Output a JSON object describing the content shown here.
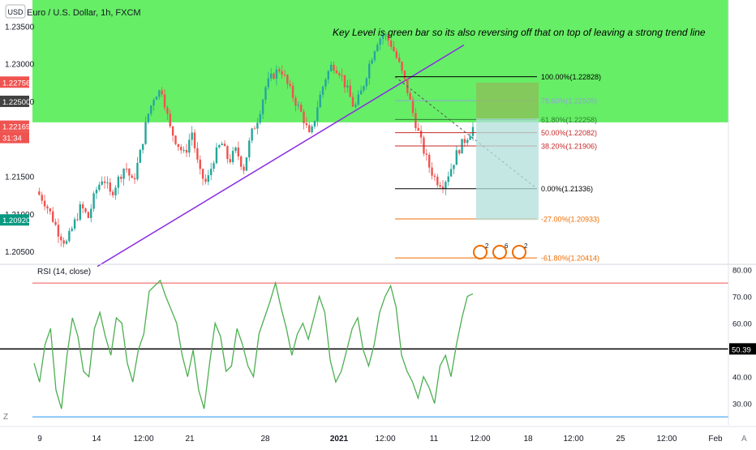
{
  "symbol_title": "Euro / U.S. Dollar, 1h, FXCM",
  "currency_badge": "USD",
  "annotation": "Key Level is green bar so its also reversing off that on top of leaving a strong trend line",
  "price_tags": [
    {
      "text": "1.22756",
      "color": "#ef5350"
    },
    {
      "text": "1.22500",
      "color": "#424242"
    },
    {
      "text": "1.22169",
      "color": "#ef5350"
    },
    {
      "text": "31:34",
      "color": "#ef5350"
    },
    {
      "text": "1.20920",
      "color": "#089981"
    }
  ],
  "rsi_label": "RSI (14, close)",
  "rsi_value_tag": "50.39",
  "bottom_left_glyph": "Z",
  "bottom_right_glyph": "A",
  "event_badges": [
    "2",
    "6",
    "2"
  ],
  "colors": {
    "key_level_zone": "#66ee66",
    "trend_line": "#8a2be2",
    "rsi_line": "#4caf50",
    "bull_candle": "#26a69a",
    "bear_candle": "#ef5350",
    "target_box": "#b2dfdb",
    "stop_box": "#8fbc5a"
  },
  "chart_data": [
    {
      "type": "candlestick",
      "title": "Euro / U.S. Dollar, 1h, FXCM",
      "y_ticks": [
        "1.23500",
        "1.23000",
        "1.22500",
        "1.21500",
        "1.21000",
        "1.20500"
      ],
      "ylim": [
        1.2035,
        1.2385
      ],
      "x_ticks": [
        "9",
        "14",
        "12:00",
        "21",
        "28",
        "2021",
        "12:00",
        "11",
        "12:00",
        "18",
        "12:00",
        "25",
        "12:00",
        "Feb"
      ],
      "price_path": [
        1.213,
        1.2118,
        1.2098,
        1.2075,
        1.206,
        1.2085,
        1.211,
        1.2095,
        1.213,
        1.215,
        1.2125,
        1.2145,
        1.2165,
        1.214,
        1.218,
        1.223,
        1.226,
        1.2265,
        1.2215,
        1.2195,
        1.2178,
        1.221,
        1.2155,
        1.214,
        1.2175,
        1.2195,
        1.217,
        1.2185,
        1.216,
        1.2205,
        1.223,
        1.227,
        1.2285,
        1.2295,
        1.227,
        1.225,
        1.223,
        1.22,
        1.2245,
        1.228,
        1.23,
        1.229,
        1.2265,
        1.224,
        1.2265,
        1.23,
        1.233,
        1.234,
        1.2325,
        1.23,
        1.227,
        1.223,
        1.2195,
        1.2165,
        1.2145,
        1.214,
        1.216,
        1.2185,
        1.22,
        1.2215
      ],
      "key_level_zone": {
        "low": 1.2222,
        "high": 1.2385
      },
      "trend_line": {
        "from": 1.203,
        "to": 1.2325
      },
      "fibonacci": [
        {
          "label": "100.00%(1.22828)",
          "level": 1.22828,
          "color": "#000000"
        },
        {
          "label": "78.60%(1.22509)",
          "level": 1.22509,
          "color": "#90a4d6"
        },
        {
          "label": "61.80%(1.22258)",
          "level": 1.22258,
          "color": "#2e7d32"
        },
        {
          "label": "50.00%(1.22082)",
          "level": 1.22082,
          "color": "#c62828"
        },
        {
          "label": "38.20%(1.21906)",
          "level": 1.21906,
          "color": "#c62828"
        },
        {
          "label": "0.00%(1.21336)",
          "level": 1.21336,
          "color": "#000000"
        },
        {
          "label": "-27.00%(1.20933)",
          "level": 1.20933,
          "color": "#ef6c00"
        },
        {
          "label": "-61.80%(1.20414)",
          "level": 1.20414,
          "color": "#ef6c00"
        }
      ],
      "position": {
        "entry": 1.2227,
        "target": 1.2092,
        "stop": 1.2275
      }
    },
    {
      "type": "line",
      "title": "RSI (14, close)",
      "y_ticks": [
        "80.00",
        "70.00",
        "60.00",
        "40.00",
        "30.00"
      ],
      "ylim": [
        22,
        82
      ],
      "levels": {
        "upper": 75,
        "middle": 50.39,
        "lower": 25
      },
      "values": [
        45,
        38,
        52,
        58,
        35,
        28,
        48,
        62,
        55,
        42,
        40,
        58,
        64,
        55,
        48,
        62,
        60,
        45,
        38,
        50,
        56,
        72,
        74,
        76,
        70,
        65,
        60,
        48,
        40,
        50,
        35,
        28,
        45,
        60,
        55,
        42,
        44,
        58,
        52,
        44,
        40,
        56,
        62,
        68,
        75,
        66,
        58,
        48,
        56,
        60,
        54,
        62,
        70,
        64,
        46,
        38,
        42,
        50,
        58,
        62,
        50,
        44,
        52,
        64,
        70,
        74,
        66,
        48,
        42,
        38,
        32,
        40,
        36,
        30,
        44,
        48,
        40,
        52,
        62,
        70,
        71
      ]
    }
  ]
}
